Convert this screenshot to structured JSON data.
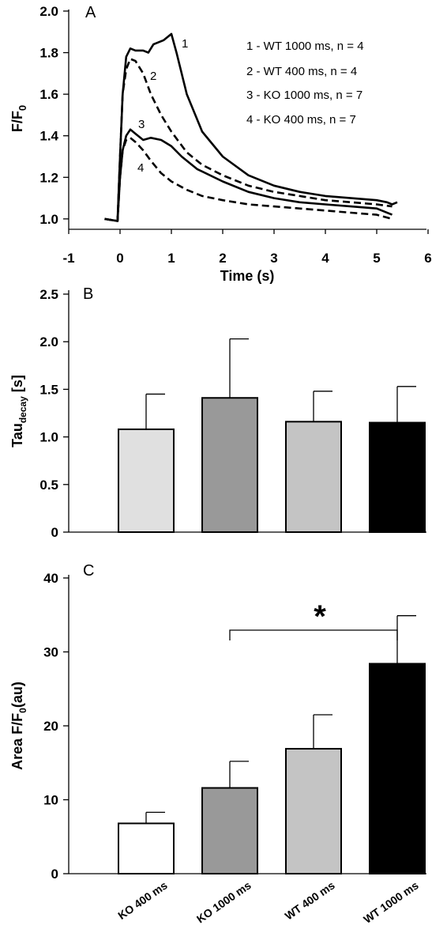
{
  "chart_data": [
    {
      "panel": "A",
      "type": "line",
      "xlabel": "Time (s)",
      "ylabel": "F/F",
      "ylabel_sub": "0",
      "xlim": [
        -1,
        6
      ],
      "ylim": [
        0.95,
        2.0
      ],
      "xticks": [
        -1,
        0,
        1,
        2,
        3,
        4,
        5,
        6
      ],
      "yticks": [
        "1.0",
        "1.2",
        "1.4",
        "1.6",
        "1.8",
        "2.0"
      ],
      "yticks_values": [
        1.0,
        1.2,
        1.4,
        1.6,
        1.8,
        2.0
      ],
      "legend": [
        "1 - WT 1000 ms, n = 4",
        "2 - WT 400 ms, n = 4",
        "3 - KO 1000 ms, n = 7",
        "4 - KO 400 ms, n = 7"
      ],
      "series": [
        {
          "name": "1",
          "style": "solid",
          "x": [
            -0.3,
            -0.05,
            0.0,
            0.05,
            0.12,
            0.2,
            0.3,
            0.45,
            0.55,
            0.65,
            0.75,
            0.85,
            0.95,
            1.0,
            1.1,
            1.3,
            1.6,
            2.0,
            2.5,
            3.0,
            3.5,
            4.0,
            4.5,
            5.0,
            5.2,
            5.3,
            5.4
          ],
          "y": [
            1.0,
            0.99,
            1.3,
            1.6,
            1.78,
            1.82,
            1.81,
            1.81,
            1.8,
            1.84,
            1.85,
            1.86,
            1.88,
            1.89,
            1.8,
            1.6,
            1.42,
            1.3,
            1.21,
            1.16,
            1.13,
            1.11,
            1.1,
            1.09,
            1.08,
            1.07,
            1.08
          ]
        },
        {
          "name": "2",
          "style": "dashed",
          "x": [
            -0.3,
            -0.05,
            0.0,
            0.05,
            0.12,
            0.2,
            0.3,
            0.45,
            0.6,
            0.8,
            1.0,
            1.3,
            1.6,
            2.0,
            2.5,
            3.0,
            3.5,
            4.0,
            4.5,
            5.0,
            5.3
          ],
          "y": [
            1.0,
            0.99,
            1.3,
            1.6,
            1.72,
            1.77,
            1.76,
            1.7,
            1.6,
            1.5,
            1.42,
            1.32,
            1.26,
            1.21,
            1.16,
            1.13,
            1.11,
            1.09,
            1.08,
            1.07,
            1.06
          ]
        },
        {
          "name": "3",
          "style": "solid",
          "x": [
            -0.3,
            -0.05,
            0.0,
            0.05,
            0.12,
            0.2,
            0.3,
            0.45,
            0.6,
            0.8,
            1.0,
            1.2,
            1.5,
            2.0,
            2.5,
            3.0,
            3.5,
            4.0,
            4.5,
            5.0,
            5.3
          ],
          "y": [
            1.0,
            0.99,
            1.2,
            1.33,
            1.4,
            1.43,
            1.41,
            1.38,
            1.39,
            1.38,
            1.35,
            1.3,
            1.24,
            1.18,
            1.13,
            1.1,
            1.08,
            1.07,
            1.06,
            1.05,
            1.02
          ]
        },
        {
          "name": "4",
          "style": "dashed",
          "x": [
            -0.3,
            -0.05,
            0.0,
            0.05,
            0.12,
            0.2,
            0.3,
            0.45,
            0.6,
            0.8,
            1.0,
            1.3,
            1.6,
            2.0,
            2.5,
            3.0,
            3.5,
            4.0,
            4.5,
            5.0,
            5.3
          ],
          "y": [
            1.0,
            0.99,
            1.2,
            1.33,
            1.38,
            1.39,
            1.37,
            1.33,
            1.28,
            1.22,
            1.18,
            1.14,
            1.11,
            1.09,
            1.07,
            1.06,
            1.05,
            1.04,
            1.03,
            1.02,
            1.0
          ]
        }
      ]
    },
    {
      "panel": "B",
      "type": "bar",
      "ylabel": "Tau",
      "ylabel_sub": "decay",
      "ylabel_suffix": " [s]",
      "ylim": [
        0,
        2.5
      ],
      "yticks": [
        "0",
        "0.5",
        "1.0",
        "1.5",
        "2.0",
        "2.5"
      ],
      "yticks_values": [
        0,
        0.5,
        1.0,
        1.5,
        2.0,
        2.5
      ],
      "values": [
        1.08,
        1.41,
        1.16,
        1.15
      ],
      "errors": [
        0.37,
        0.62,
        0.32,
        0.38
      ],
      "colors": [
        "#e0e0e0",
        "#999999",
        "#c4c4c4",
        "#000000"
      ]
    },
    {
      "panel": "C",
      "type": "bar",
      "ylabel": "Area F/F",
      "ylabel_sub": "0",
      "ylabel_suffix": "(au)",
      "ylim": [
        0,
        40
      ],
      "yticks": [
        "0",
        "10",
        "20",
        "30",
        "40"
      ],
      "yticks_values": [
        0,
        10,
        20,
        30,
        40
      ],
      "categories": [
        "KO 400 ms",
        "KO 1000 ms",
        "WT 400 ms",
        "WT 1000 ms"
      ],
      "values": [
        6.8,
        11.6,
        16.9,
        28.4
      ],
      "errors": [
        1.5,
        3.6,
        4.6,
        6.5
      ],
      "colors": [
        "#ffffff",
        "#999999",
        "#c4c4c4",
        "#000000"
      ],
      "significance": {
        "from": 1,
        "to": 3,
        "label": "*"
      }
    }
  ]
}
